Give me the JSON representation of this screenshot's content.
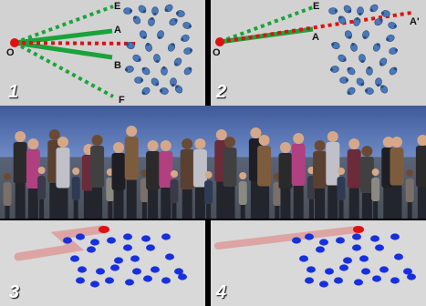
{
  "panels": [
    {
      "number": "1",
      "labels": {
        "origin": "O",
        "a": "A",
        "b": "B",
        "e": "E",
        "f": "F"
      }
    },
    {
      "number": "2",
      "labels": {
        "origin": "O",
        "a": "A",
        "a_prime": "A'",
        "e": "E"
      }
    },
    {
      "number": "3"
    },
    {
      "number": "4"
    }
  ],
  "colors": {
    "green": "#1aa33a",
    "red": "#e01010",
    "crowd_icon": "#4a78b8",
    "blue_dot": "#1630e0",
    "trail": "#e07878"
  }
}
